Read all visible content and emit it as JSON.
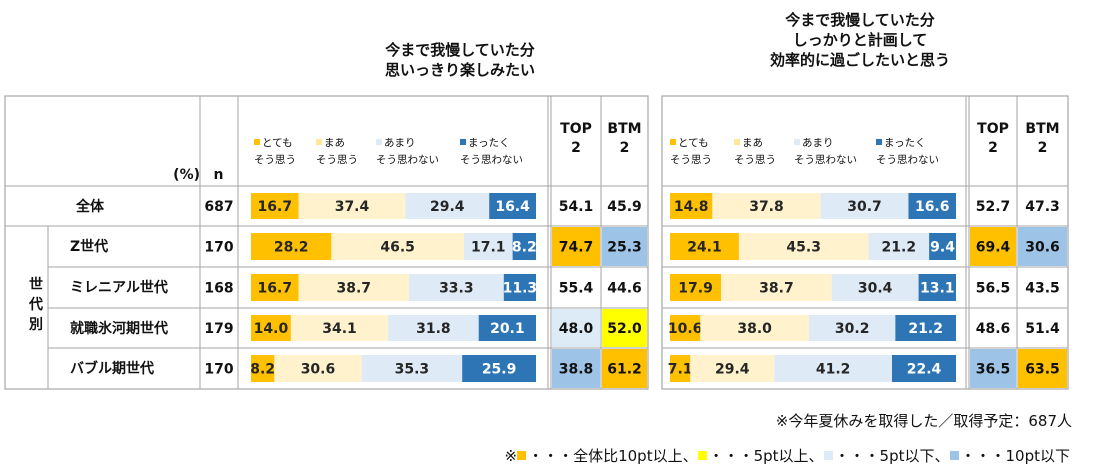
{
  "chart_data": [
    {
      "type": "bar",
      "stacked": true,
      "orientation": "horizontal",
      "title": "今まで我慢していた分 思いっきり楽しみたい",
      "title_lines": [
        "今まで我慢していた分",
        "思いっきり楽しみたい"
      ],
      "categories": [
        "全体",
        "Z世代",
        "ミレニアル世代",
        "就職氷河期世代",
        "バブル期世代"
      ],
      "n": [
        687,
        170,
        168,
        179,
        170
      ],
      "series": [
        {
          "name": "とても そう思う",
          "values": [
            16.7,
            28.2,
            16.7,
            14.0,
            8.2
          ]
        },
        {
          "name": "まあ そう思う",
          "values": [
            37.4,
            46.5,
            38.7,
            34.1,
            30.6
          ]
        },
        {
          "name": "あまり そう思わない",
          "values": [
            29.4,
            17.1,
            33.3,
            31.8,
            35.3
          ]
        },
        {
          "name": "まったく そう思わない",
          "values": [
            16.4,
            8.2,
            11.3,
            20.1,
            25.9
          ]
        }
      ],
      "top2": [
        54.1,
        74.7,
        55.4,
        48.0,
        38.8
      ],
      "btm2": [
        45.9,
        25.3,
        44.6,
        52.0,
        61.2
      ]
    },
    {
      "type": "bar",
      "stacked": true,
      "orientation": "horizontal",
      "title": "今まで我慢していた分 しっかりと計画して 効率的に過ごしたいと思う",
      "title_lines": [
        "今まで我慢していた分",
        "しっかりと計画して",
        "効率的に過ごしたいと思う"
      ],
      "categories": [
        "全体",
        "Z世代",
        "ミレニアル世代",
        "就職氷河期世代",
        "バブル期世代"
      ],
      "series": [
        {
          "name": "とても そう思う",
          "values": [
            14.8,
            24.1,
            17.9,
            10.6,
            7.1
          ]
        },
        {
          "name": "まあ そう思う",
          "values": [
            37.8,
            45.3,
            38.7,
            38.0,
            29.4
          ]
        },
        {
          "name": "あまり そう思わない",
          "values": [
            30.7,
            21.2,
            30.4,
            30.2,
            41.2
          ]
        },
        {
          "name": "まったく そう思わない",
          "values": [
            16.6,
            9.4,
            13.1,
            21.2,
            22.4
          ]
        }
      ],
      "top2": [
        52.7,
        69.4,
        56.5,
        48.6,
        36.5
      ],
      "btm2": [
        47.3,
        30.6,
        43.5,
        51.4,
        63.5
      ]
    }
  ],
  "table": {
    "pct_label": "(%)",
    "n_label": "n",
    "top2_label": [
      "TOP",
      "2"
    ],
    "btm2_label": [
      "BTM",
      "2"
    ],
    "group_label": [
      "世",
      "代",
      "別"
    ],
    "legend": [
      {
        "l1": "とても",
        "l2": "そう思う"
      },
      {
        "l1": "まあ",
        "l2": "そう思う"
      },
      {
        "l1": "あまり",
        "l2": "そう思わない"
      },
      {
        "l1": "まったく",
        "l2": "そう思わない"
      }
    ]
  },
  "colors": {
    "seg1": "#FFC000",
    "seg2": "#FFF2CC",
    "seg3": "#DEEBF7",
    "seg4": "#2E75B6",
    "hl_10up": "#FFC000",
    "hl_5up": "#FFFF00",
    "hl_5down": "#DDEBF7",
    "hl_10down": "#9DC3E6",
    "grid": "#A6A6A6"
  },
  "highlights": {
    "left_top2": [
      "",
      "10up",
      "",
      "5down",
      "10down"
    ],
    "left_btm2": [
      "",
      "10down",
      "",
      "5up",
      "10up"
    ],
    "right_top2": [
      "",
      "10up",
      "",
      "",
      "10down"
    ],
    "right_btm2": [
      "",
      "10down",
      "",
      "",
      "10up"
    ]
  },
  "notes": {
    "sample": "※今年夏休みを取得した／取得予定：687人",
    "legend_prefix": "※",
    "legend_items": [
      {
        "key": "10up",
        "text": "・・・全体比10pt以上、"
      },
      {
        "key": "5up",
        "text": "・・・5pt以上、"
      },
      {
        "key": "5down",
        "text": "・・・5pt以下、"
      },
      {
        "key": "10down",
        "text": "・・・10pt以下"
      }
    ]
  }
}
